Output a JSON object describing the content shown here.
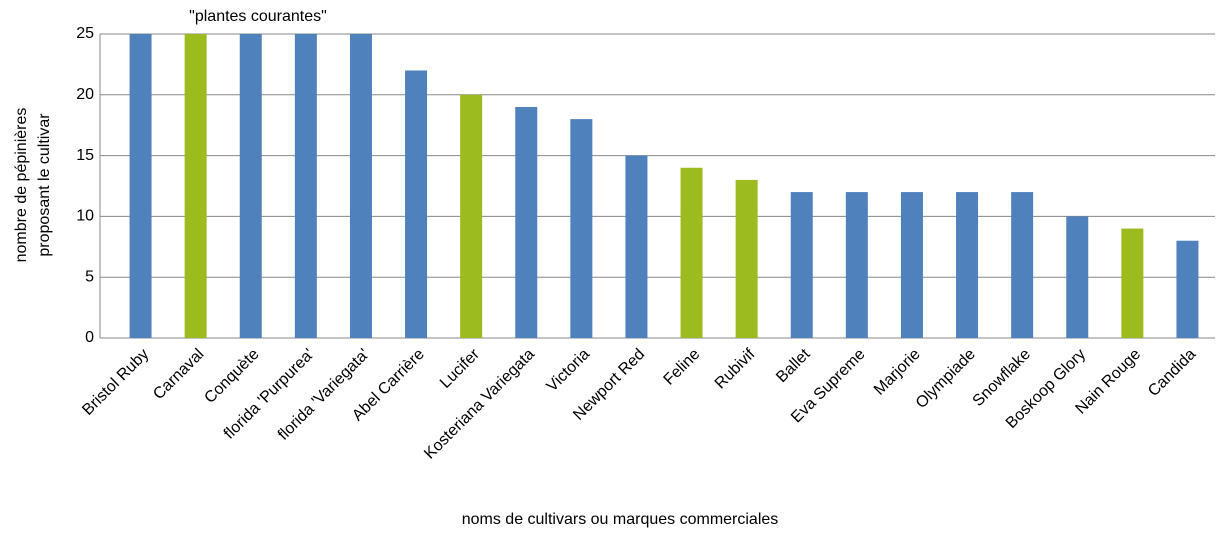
{
  "chart_data": {
    "type": "bar",
    "annotation": "\"plantes courantes\"",
    "x_label": "noms de cultivars ou marques commerciales",
    "y_label": [
      "nombre de pépinières",
      "proposant le cultivar"
    ],
    "categories": [
      "Bristol Ruby",
      "Carnaval",
      "Conquète",
      "florida 'Purpurea'",
      "florida 'Variegata'",
      "Abel Carrière",
      "Lucifer",
      "Kosteriana Variegata",
      "Victoria",
      "Newport Red",
      "Feline",
      "Rubivif",
      "Ballet",
      "Eva Supreme",
      "Marjorie",
      "Olympiade",
      "Snowflake",
      "Boskoop Glory",
      "Nain Rouge",
      "Candida"
    ],
    "values": [
      25,
      25,
      25,
      25,
      25,
      22,
      20,
      19,
      18,
      15,
      14,
      13,
      12,
      12,
      12,
      12,
      12,
      10,
      9,
      8
    ],
    "colors": [
      "#4f81bd",
      "#9bbb1f",
      "#4f81bd",
      "#4f81bd",
      "#4f81bd",
      "#4f81bd",
      "#9bbb1f",
      "#4f81bd",
      "#4f81bd",
      "#4f81bd",
      "#9bbb1f",
      "#9bbb1f",
      "#4f81bd",
      "#4f81bd",
      "#4f81bd",
      "#4f81bd",
      "#4f81bd",
      "#4f81bd",
      "#9bbb1f",
      "#4f81bd"
    ],
    "ylim": [
      0,
      25
    ],
    "yticks": [
      0,
      5,
      10,
      15,
      20,
      25
    ],
    "grid": true
  }
}
